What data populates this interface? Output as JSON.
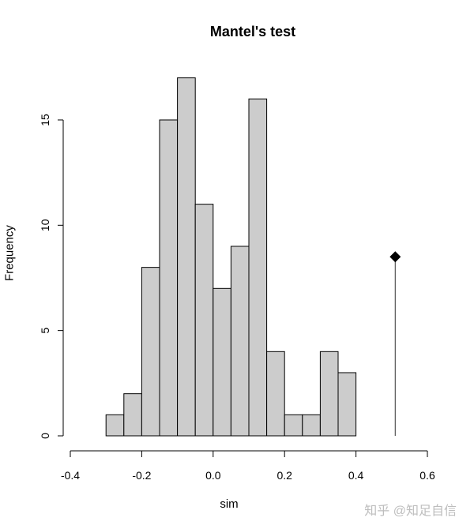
{
  "chart_data": {
    "type": "bar",
    "subtype": "histogram",
    "title": "Mantel's test",
    "xlabel": "sim",
    "ylabel": "Frequency",
    "bin_edges": [
      -0.3,
      -0.25,
      -0.2,
      -0.15,
      -0.1,
      -0.05,
      0.0,
      0.05,
      0.1,
      0.15,
      0.2,
      0.25,
      0.3,
      0.35,
      0.4
    ],
    "categories": [
      "-0.30 to -0.25",
      "-0.25 to -0.20",
      "-0.20 to -0.15",
      "-0.15 to -0.10",
      "-0.10 to -0.05",
      "-0.05 to 0.00",
      "0.00 to 0.05",
      "0.05 to 0.10",
      "0.10 to 0.15",
      "0.15 to 0.20",
      "0.20 to 0.25",
      "0.25 to 0.30",
      "0.30 to 0.35",
      "0.35 to 0.40"
    ],
    "values": [
      1,
      2,
      8,
      15,
      17,
      11,
      7,
      9,
      16,
      4,
      1,
      1,
      4,
      3
    ],
    "observed_statistic": {
      "x": 0.51,
      "marker_height": 8.5,
      "marker": "diamond"
    },
    "xlim": [
      -0.4,
      0.6
    ],
    "ylim": [
      0,
      17
    ],
    "x_ticks": [
      "-0.4",
      "-0.2",
      "0.0",
      "0.2",
      "0.4",
      "0.6"
    ],
    "y_ticks": [
      "0",
      "5",
      "10",
      "15"
    ],
    "grid": false,
    "legend": null,
    "bar_color": "#cccccc",
    "edge_color": "#000000"
  },
  "watermark": "知乎 @知足自信"
}
